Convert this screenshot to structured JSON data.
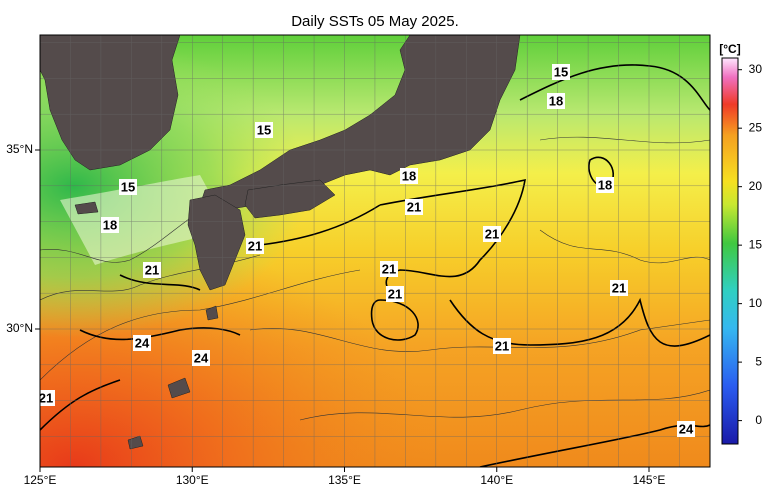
{
  "title": "Daily SSTs 05 May 2025.",
  "map": {
    "lon_ticks": [
      "125°E",
      "130°E",
      "135°E",
      "140°E",
      "145°E"
    ],
    "lat_ticks": [
      "35°N",
      "30°N"
    ],
    "contour_labels": [
      "15",
      "15",
      "15",
      "18",
      "18",
      "18",
      "18",
      "21",
      "21",
      "21",
      "21",
      "21",
      "21",
      "21",
      "21",
      "21",
      "24",
      "24",
      "24"
    ]
  },
  "colorbar": {
    "unit": "[°C]",
    "lim": [
      -2,
      31
    ],
    "ticks": [
      0,
      5,
      10,
      15,
      20,
      25,
      30
    ]
  }
}
